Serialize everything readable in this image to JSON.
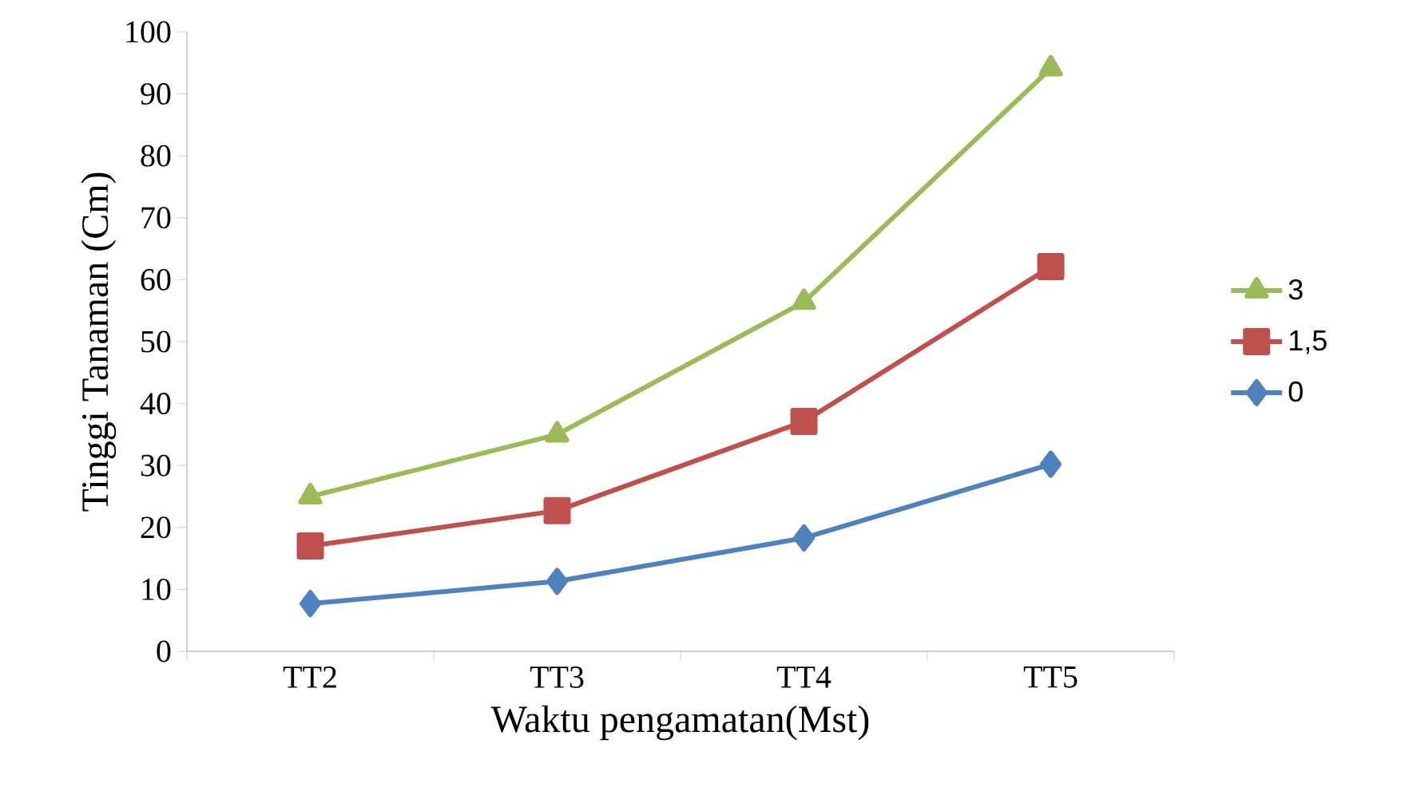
{
  "chart_data": {
    "type": "line",
    "xlabel": "Waktu pengamatan(Mst)",
    "ylabel": "Tinggi Tanaman (Cm)",
    "categories": [
      "TT2",
      "TT3",
      "TT4",
      "TT5"
    ],
    "series": [
      {
        "name": "3",
        "color": "#9bbb59",
        "marker": "triangle",
        "values": [
          25.0,
          35.0,
          56.4,
          94.1
        ]
      },
      {
        "name": "1,5",
        "color": "#c0504d",
        "marker": "square",
        "values": [
          17.0,
          22.7,
          37.1,
          62.1
        ]
      },
      {
        "name": "0",
        "color": "#4f81bd",
        "marker": "diamond",
        "values": [
          7.7,
          11.3,
          18.3,
          30.2
        ]
      }
    ],
    "ylim": [
      0,
      100
    ],
    "yticks": [
      0,
      10,
      20,
      30,
      40,
      50,
      60,
      70,
      80,
      90,
      100
    ],
    "grid": false,
    "legend": "right"
  }
}
